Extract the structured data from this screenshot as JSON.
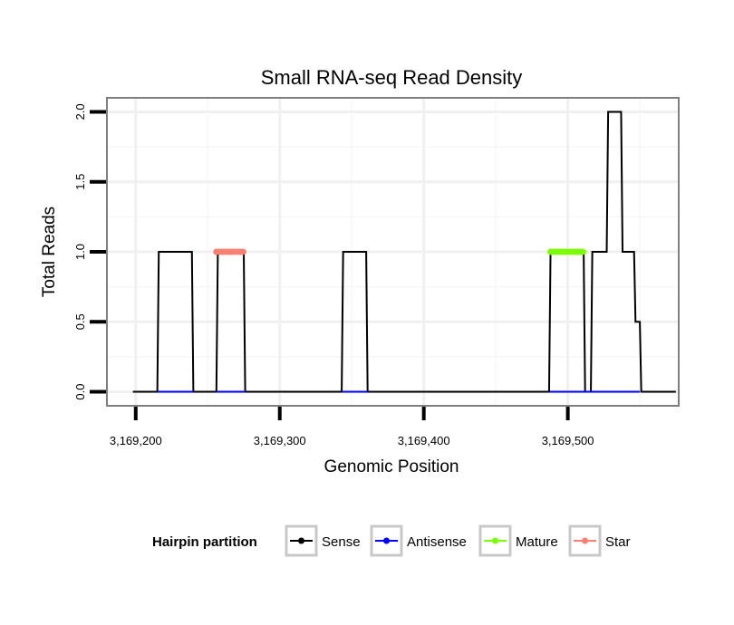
{
  "chart_data": {
    "type": "line",
    "title": "Small RNA-seq Read Density",
    "xlabel": "Genomic Position",
    "ylabel": "Total Reads",
    "xlim": [
      3169180,
      3169577
    ],
    "ylim": [
      -0.1,
      2.1
    ],
    "xticks": [
      3169200,
      3169300,
      3169400,
      3169500
    ],
    "xtick_labels": [
      "3,169,200",
      "3,169,300",
      "3,169,400",
      "3,169,500"
    ],
    "yticks": [
      0.0,
      0.5,
      1.0,
      1.5,
      2.0
    ],
    "ytick_labels": [
      "0.0",
      "0.5",
      "1.0",
      "1.5",
      "2.0"
    ],
    "grid": true,
    "legend": {
      "title": "Hairpin partition",
      "position": "bottom",
      "entries": [
        {
          "name": "Sense",
          "color": "#000000"
        },
        {
          "name": "Antisense",
          "color": "#0000ff"
        },
        {
          "name": "Mature",
          "color": "#7cfc00"
        },
        {
          "name": "Star",
          "color": "#fa8072"
        }
      ]
    },
    "series": [
      {
        "name": "Sense",
        "color": "#000000",
        "x": [
          3169198,
          3169215,
          3169216,
          3169239,
          3169240,
          3169256,
          3169257,
          3169275,
          3169276,
          3169343,
          3169344,
          3169360,
          3169361,
          3169487,
          3169488,
          3169511,
          3169512,
          3169516,
          3169517,
          3169527,
          3169528,
          3169537,
          3169538,
          3169546,
          3169547,
          3169550,
          3169551,
          3169575
        ],
        "y": [
          0,
          0,
          1,
          1,
          0,
          0,
          1,
          1,
          0,
          0,
          1,
          1,
          0,
          0,
          1,
          1,
          0,
          0,
          1,
          1,
          2,
          2,
          1,
          1,
          0.5,
          0.5,
          0,
          0
        ]
      },
      {
        "name": "Antisense",
        "color": "#0000ff",
        "x": [
          3169215,
          3169240,
          3169256,
          3169276,
          3169343,
          3169361,
          3169487,
          3169550
        ],
        "y": [
          0,
          0,
          0,
          0,
          0,
          0,
          0,
          0
        ],
        "segments": [
          [
            0,
            1
          ],
          [
            2,
            3
          ],
          [
            4,
            5
          ],
          [
            6,
            7
          ]
        ]
      },
      {
        "name": "Mature",
        "color": "#7cfc00",
        "x": [
          3169488,
          3169511
        ],
        "y": [
          1,
          1
        ]
      },
      {
        "name": "Star",
        "color": "#fa8072",
        "x": [
          3169256,
          3169275
        ],
        "y": [
          1,
          1
        ]
      }
    ]
  }
}
